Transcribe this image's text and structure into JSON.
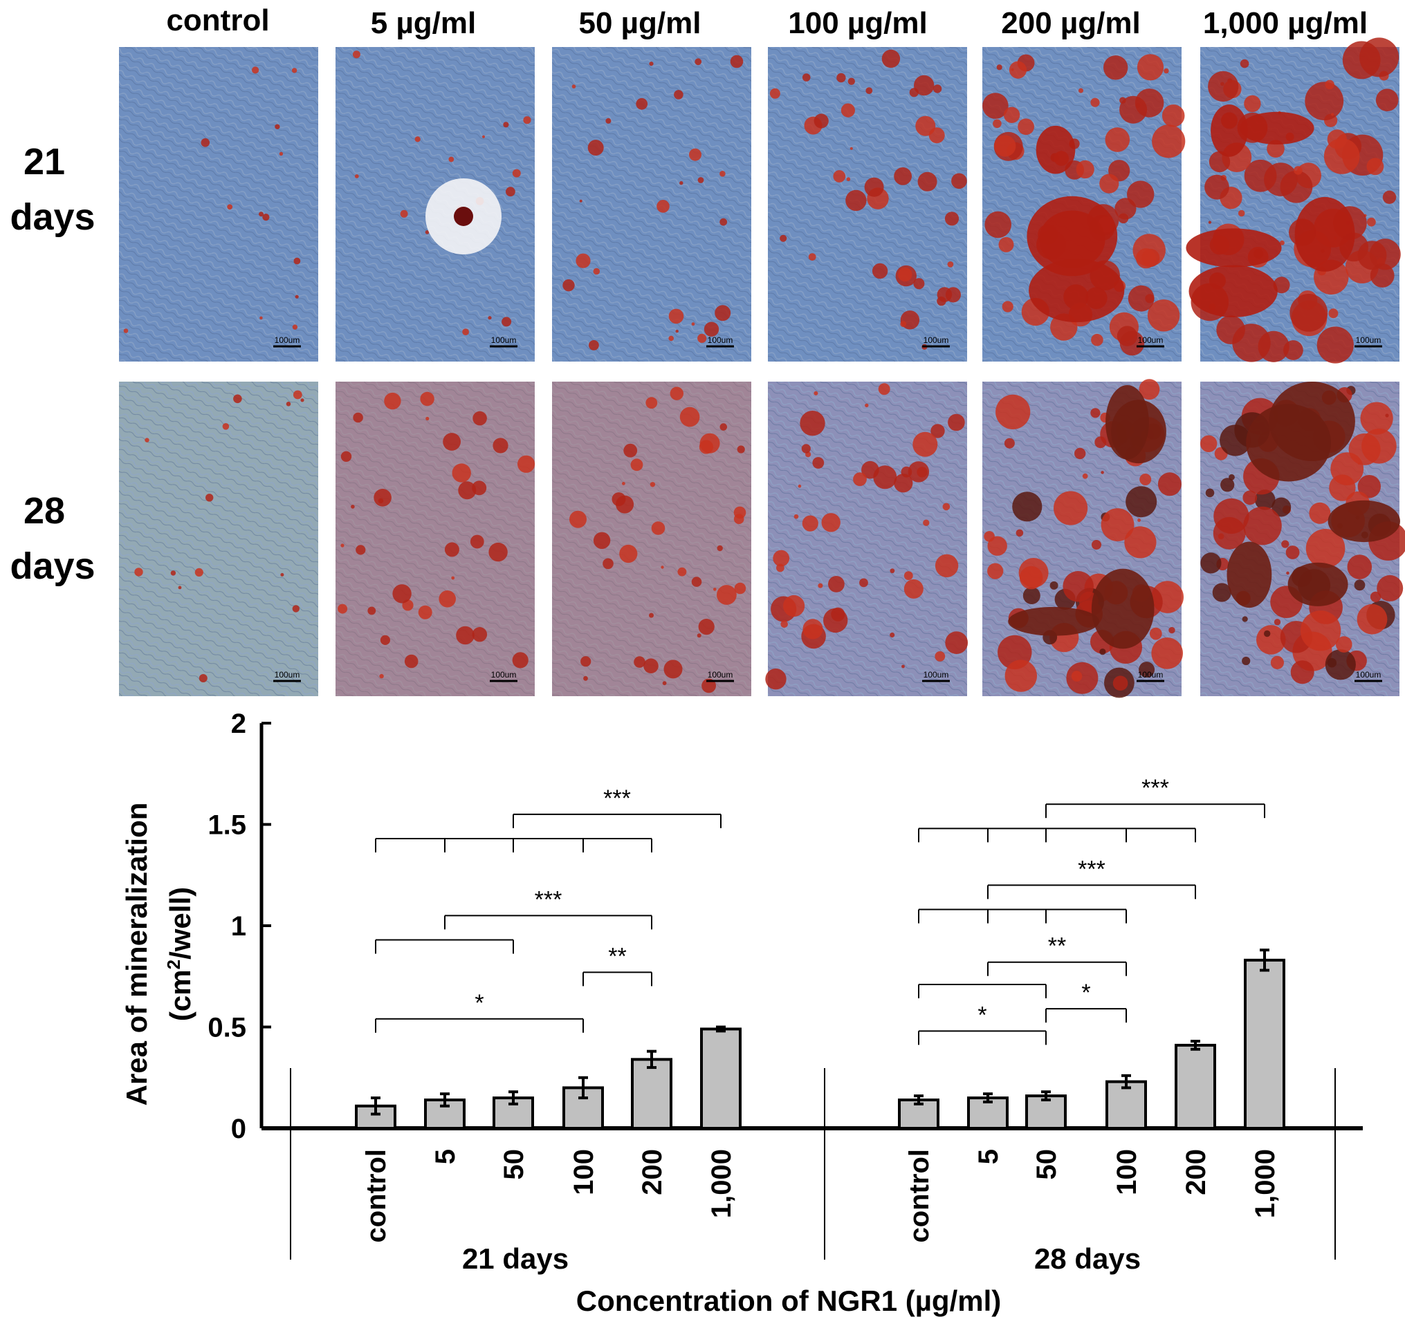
{
  "micrographs": {
    "columns": [
      "control",
      "5 µg/ml",
      "50 µg/ml",
      "100 µg/ml",
      "200 µg/ml",
      "1,000 µg/ml"
    ],
    "rows": [
      {
        "label_line1": "21",
        "label_line2": "days"
      },
      {
        "label_line1": "28",
        "label_line2": "days"
      }
    ],
    "scale_bar_text": "100um",
    "stain_level": [
      [
        0.02,
        0.06,
        0.2,
        0.35,
        0.65,
        0.85
      ],
      [
        0.03,
        0.3,
        0.35,
        0.45,
        0.7,
        0.85
      ]
    ]
  },
  "chart_data": {
    "type": "bar",
    "ylabel_line1": "Area of mineralization",
    "ylabel_line2_pre": "(cm",
    "ylabel_sup": "2",
    "ylabel_line2_post": "/well)",
    "xlabel": "Concentration of NGR1 (µg/ml)",
    "ylim": [
      0,
      2
    ],
    "yticks": [
      "0",
      "0.5",
      "1",
      "1.5",
      "2"
    ],
    "bar_color": "#c0c0c0",
    "groups": [
      {
        "name": "21 days",
        "categories": [
          "control",
          "5",
          "50",
          "100",
          "200",
          "1,000"
        ],
        "values": [
          0.11,
          0.14,
          0.15,
          0.2,
          0.34,
          0.49
        ],
        "errors": [
          0.04,
          0.03,
          0.03,
          0.05,
          0.04,
          0.01
        ],
        "significance": [
          {
            "label": "*",
            "from": 0,
            "to": [
              3
            ],
            "y": 0.54
          },
          {
            "label": "**",
            "from": 3,
            "to": [
              4
            ],
            "y": 0.77
          },
          {
            "label": "",
            "from": 0,
            "to": [
              2
            ],
            "y": 0.93
          },
          {
            "label": "***",
            "from": 1,
            "to": [
              4
            ],
            "y": 1.05
          },
          {
            "label": "",
            "from": 0,
            "to": [
              1,
              2,
              3,
              4
            ],
            "y": 1.43
          },
          {
            "label": "***",
            "from": 2,
            "to": [
              5
            ],
            "y": 1.55
          }
        ]
      },
      {
        "name": "28 days",
        "categories": [
          "control",
          "5",
          "50",
          "100",
          "200",
          "1,000"
        ],
        "values": [
          0.14,
          0.15,
          0.16,
          0.23,
          0.41,
          0.83
        ],
        "errors": [
          0.02,
          0.02,
          0.02,
          0.03,
          0.02,
          0.05
        ],
        "significance": [
          {
            "label": "*",
            "from": 0,
            "to": [
              2
            ],
            "y": 0.48
          },
          {
            "label": "*",
            "from": 2,
            "to": [
              3
            ],
            "y": 0.59
          },
          {
            "label": "",
            "from": 0,
            "to": [
              2
            ],
            "y": 0.71
          },
          {
            "label": "**",
            "from": 1,
            "to": [
              3
            ],
            "y": 0.82
          },
          {
            "label": "",
            "from": 0,
            "to": [
              1,
              2,
              3
            ],
            "y": 1.08
          },
          {
            "label": "***",
            "from": 1,
            "to": [
              4
            ],
            "y": 1.2
          },
          {
            "label": "",
            "from": 0,
            "to": [
              1,
              2,
              3,
              4
            ],
            "y": 1.48
          },
          {
            "label": "***",
            "from": 2,
            "to": [
              5
            ],
            "y": 1.6
          }
        ]
      }
    ]
  }
}
